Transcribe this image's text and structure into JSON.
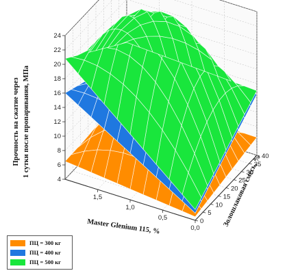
{
  "chart_data": {
    "type": "surface3d",
    "z_axis": {
      "label_line1": "Прочность на сжатие через",
      "label_line2": "1 сутки после пропаривания, МПа",
      "range": [
        4,
        24
      ],
      "ticks": [
        "4",
        "6",
        "8",
        "10",
        "12",
        "14",
        "16",
        "18",
        "20",
        "22",
        "24"
      ]
    },
    "x_axis": {
      "label": "Master Glenium 115, %",
      "range": [
        0,
        2
      ],
      "ticks": [
        "0,0",
        "0,5",
        "1,0",
        "1,5"
      ],
      "tick_values": [
        0,
        0.5,
        1.0,
        1.5
      ]
    },
    "y_axis": {
      "label": "Золошлаковая смесь, %",
      "range": [
        0,
        40
      ],
      "ticks": [
        "0",
        "5",
        "10",
        "15",
        "20",
        "25",
        "30",
        "35",
        "40"
      ]
    },
    "series": [
      {
        "name": "ПЦ = 300 кг",
        "color": "#ff8c00",
        "corners": {
          "x0_y0": 4.5,
          "x0_y40": 6.5,
          "x2_y0": 6.5,
          "x2_y40": 6.8
        },
        "peak": 15.5
      },
      {
        "name": "ПЦ = 400 кг",
        "color": "#1f78e0",
        "corners": {
          "x0_y0": 5.0,
          "x0_y40": 12.5,
          "x2_y0": 16.0,
          "x2_y40": 12.0
        },
        "peak": 19.5
      },
      {
        "name": "ПЦ = 500 кг",
        "color": "#19e63c",
        "corners": {
          "x0_y0": 5.5,
          "x0_y40": 13.0,
          "x2_y0": 20.8,
          "x2_y40": 14.0
        },
        "peak": 25.0
      }
    ],
    "grid": true,
    "legend_position": "bottom-left"
  }
}
